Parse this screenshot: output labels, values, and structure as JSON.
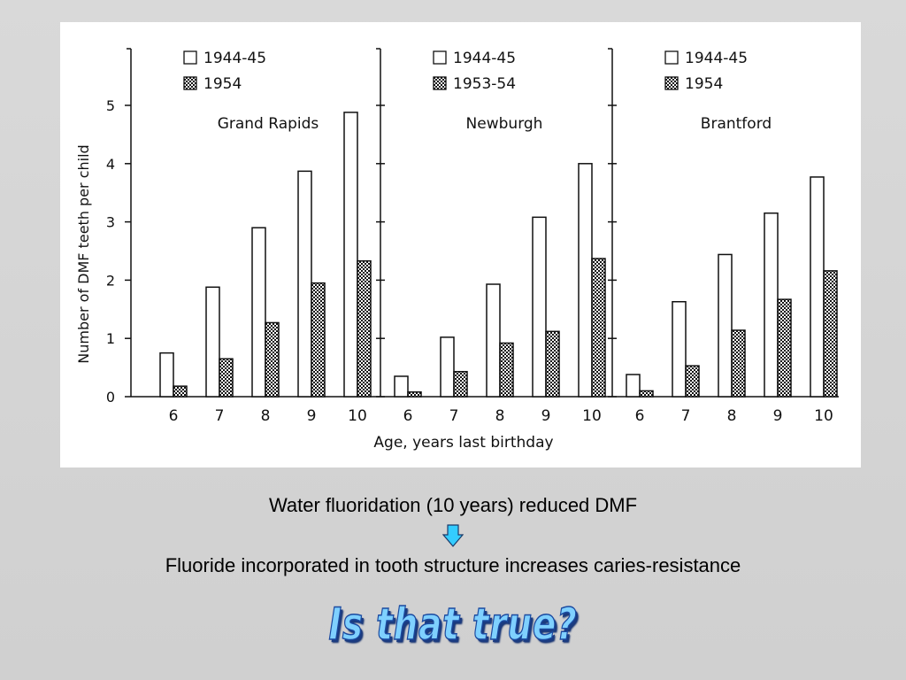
{
  "chart_data": {
    "type": "bar",
    "ylabel": "Number of DMF teeth per child",
    "xlabel": "Age, years last birthday",
    "ylim": [
      0,
      5.5
    ],
    "yticks": [
      0,
      1,
      2,
      3,
      4,
      5
    ],
    "categories": [
      "6",
      "7",
      "8",
      "9",
      "10"
    ],
    "panels": [
      {
        "city": "Grand Rapids",
        "series": [
          {
            "name": "1944-45",
            "values": [
              0.75,
              1.88,
              2.9,
              3.87,
              4.88
            ]
          },
          {
            "name": "1954",
            "values": [
              0.18,
              0.65,
              1.27,
              1.95,
              2.33
            ]
          }
        ]
      },
      {
        "city": "Newburgh",
        "series": [
          {
            "name": "1944-45",
            "values": [
              0.35,
              1.02,
              1.93,
              3.08,
              4.0
            ]
          },
          {
            "name": "1953-54",
            "values": [
              0.08,
              0.43,
              0.92,
              1.12,
              2.37
            ]
          }
        ]
      },
      {
        "city": "Brantford",
        "series": [
          {
            "name": "1944-45",
            "values": [
              0.38,
              1.63,
              2.44,
              3.15,
              3.77
            ]
          },
          {
            "name": "1954",
            "values": [
              0.1,
              0.53,
              1.14,
              1.67,
              2.16
            ]
          }
        ]
      }
    ]
  },
  "captions": {
    "line1": "Water fluoridation (10 years) reduced DMF",
    "line2": "Fluoride incorporated in tooth structure increases caries-resistance",
    "question": "Is that true?"
  },
  "colors": {
    "background": "#d5d5d5",
    "arrow_fill": "#33ccff",
    "question_fill": "#7fd0ff",
    "question_outline": "#1b4aa0"
  },
  "icons": {
    "arrow": "down-arrow-icon"
  }
}
